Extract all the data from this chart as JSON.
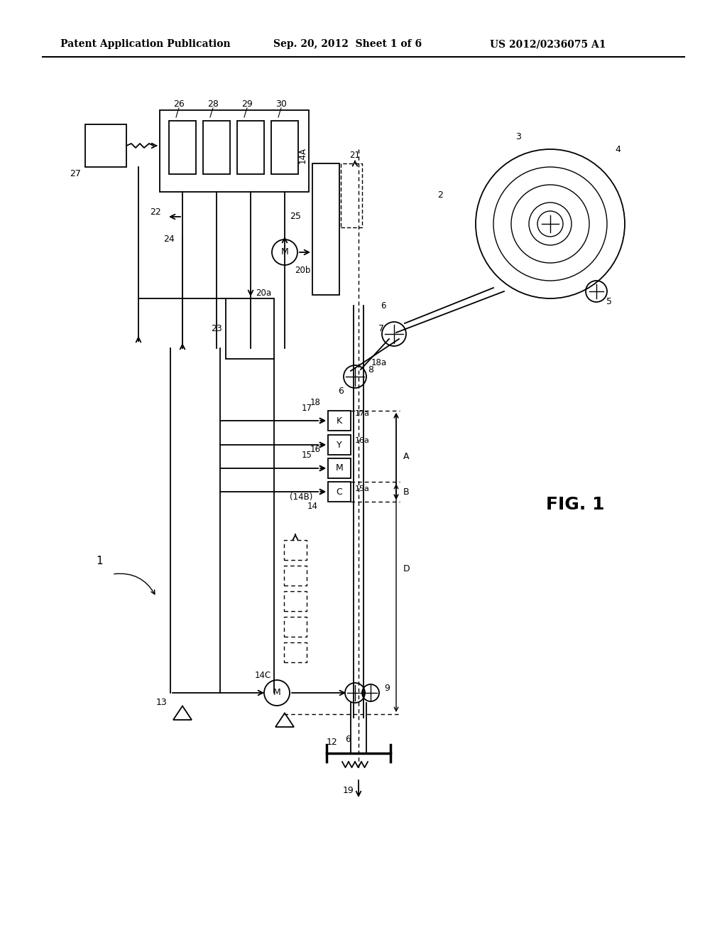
{
  "title_left": "Patent Application Publication",
  "title_center": "Sep. 20, 2012  Sheet 1 of 6",
  "title_right": "US 2012/0236075 A1",
  "fig_label": "FIG. 1",
  "background": "#ffffff",
  "line_color": "#000000"
}
